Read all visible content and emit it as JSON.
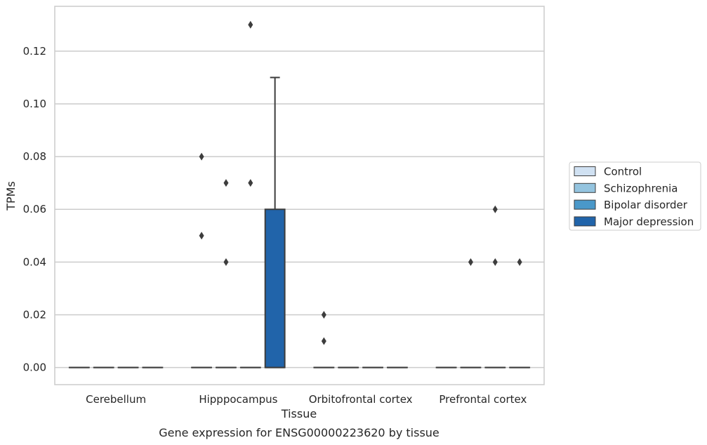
{
  "chart_data": {
    "type": "box",
    "title": "",
    "caption": "Gene expression for ENSG00000223620 by tissue",
    "xlabel": "Tissue",
    "ylabel": "TPMs",
    "ylim": [
      -0.0065,
      0.137
    ],
    "yticks": [
      0.0,
      0.02,
      0.04,
      0.06,
      0.08,
      0.1,
      0.12
    ],
    "ytick_labels": [
      "0.00",
      "0.02",
      "0.04",
      "0.06",
      "0.08",
      "0.10",
      "0.12"
    ],
    "grid": "horizontal",
    "legend_position": "right",
    "categories": [
      "Cerebellum",
      "Hipppocampus",
      "Orbitofrontal cortex",
      "Prefrontal cortex"
    ],
    "series": [
      {
        "name": "Control",
        "color": "#d0e1f2",
        "boxes": [
          {
            "q1": 0,
            "median": 0,
            "q3": 0,
            "whisker_low": 0,
            "whisker_high": 0,
            "outliers": []
          },
          {
            "q1": 0,
            "median": 0,
            "q3": 0,
            "whisker_low": 0,
            "whisker_high": 0,
            "outliers": [
              0.08,
              0.05
            ]
          },
          {
            "q1": 0,
            "median": 0,
            "q3": 0,
            "whisker_low": 0,
            "whisker_high": 0,
            "outliers": [
              0.02,
              0.01
            ]
          },
          {
            "q1": 0,
            "median": 0,
            "q3": 0,
            "whisker_low": 0,
            "whisker_high": 0,
            "outliers": []
          }
        ]
      },
      {
        "name": "Schizophrenia",
        "color": "#94c4df",
        "boxes": [
          {
            "q1": 0,
            "median": 0,
            "q3": 0,
            "whisker_low": 0,
            "whisker_high": 0,
            "outliers": []
          },
          {
            "q1": 0,
            "median": 0,
            "q3": 0,
            "whisker_low": 0,
            "whisker_high": 0,
            "outliers": [
              0.07,
              0.04
            ]
          },
          {
            "q1": 0,
            "median": 0,
            "q3": 0,
            "whisker_low": 0,
            "whisker_high": 0,
            "outliers": []
          },
          {
            "q1": 0,
            "median": 0,
            "q3": 0,
            "whisker_low": 0,
            "whisker_high": 0,
            "outliers": [
              0.04
            ]
          }
        ]
      },
      {
        "name": "Bipolar disorder",
        "color": "#4a98c9",
        "boxes": [
          {
            "q1": 0,
            "median": 0,
            "q3": 0,
            "whisker_low": 0,
            "whisker_high": 0,
            "outliers": []
          },
          {
            "q1": 0,
            "median": 0,
            "q3": 0,
            "whisker_low": 0,
            "whisker_high": 0,
            "outliers": [
              0.13,
              0.07
            ]
          },
          {
            "q1": 0,
            "median": 0,
            "q3": 0,
            "whisker_low": 0,
            "whisker_high": 0,
            "outliers": []
          },
          {
            "q1": 0,
            "median": 0,
            "q3": 0,
            "whisker_low": 0,
            "whisker_high": 0,
            "outliers": [
              0.06,
              0.04
            ]
          }
        ]
      },
      {
        "name": "Major depression",
        "color": "#2164aa",
        "boxes": [
          {
            "q1": 0,
            "median": 0,
            "q3": 0,
            "whisker_low": 0,
            "whisker_high": 0,
            "outliers": []
          },
          {
            "q1": 0,
            "median": 0,
            "q3": 0.06,
            "whisker_low": 0,
            "whisker_high": 0.11,
            "outliers": []
          },
          {
            "q1": 0,
            "median": 0,
            "q3": 0,
            "whisker_low": 0,
            "whisker_high": 0,
            "outliers": []
          },
          {
            "q1": 0,
            "median": 0,
            "q3": 0,
            "whisker_low": 0,
            "whisker_high": 0,
            "outliers": [
              0.04
            ]
          }
        ]
      }
    ]
  }
}
